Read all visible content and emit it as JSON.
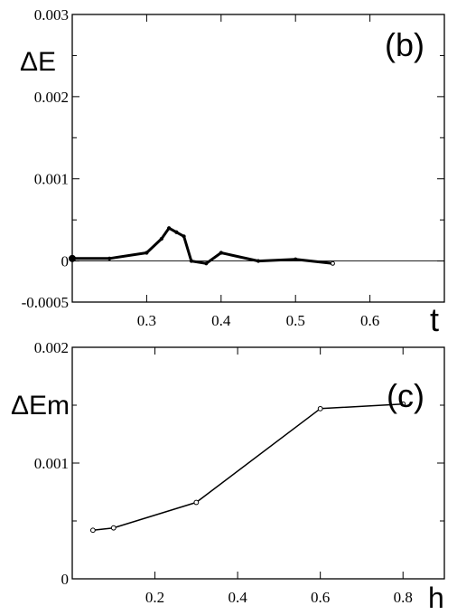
{
  "chart_data": [
    {
      "type": "line",
      "panel_label": "(b)",
      "xlabel": "t",
      "ylabel": "ΔE",
      "xlim": [
        0.2,
        0.7
      ],
      "ylim": [
        -0.0005,
        0.003
      ],
      "xticks": [
        0.3,
        0.4,
        0.5,
        0.6
      ],
      "xtick_labels": [
        "0.3",
        "0.4",
        "0.5",
        "0.6"
      ],
      "yticks": [
        -0.0005,
        0,
        0.001,
        0.002,
        0.003
      ],
      "ytick_labels": [
        "-0.0005",
        "0",
        "0.001",
        "0.002",
        "0.003"
      ],
      "minor_yticks": [
        0.0005,
        0.0015,
        0.0025
      ],
      "zero_line": true,
      "grid": false,
      "series": [
        {
          "x": [
            0.2,
            0.25,
            0.3,
            0.32,
            0.33,
            0.34,
            0.35,
            0.36,
            0.38,
            0.4,
            0.45,
            0.5,
            0.55
          ],
          "y": [
            3e-05,
            3e-05,
            0.0001,
            0.00027,
            0.0004,
            0.00035,
            0.0003,
            0.0,
            -3e-05,
            0.0001,
            0.0,
            2e-05,
            -3e-05
          ]
        }
      ]
    },
    {
      "type": "line",
      "panel_label": "(c)",
      "xlabel": "h",
      "ylabel": "ΔEm",
      "xlim": [
        0.0,
        0.9
      ],
      "ylim": [
        0.0,
        0.002
      ],
      "xticks": [
        0.2,
        0.4,
        0.6,
        0.8
      ],
      "xtick_labels": [
        "0.2",
        "0.4",
        "0.6",
        "0.8"
      ],
      "yticks": [
        0,
        0.001,
        0.002
      ],
      "ytick_labels": [
        "0",
        "0.001",
        "0.002"
      ],
      "minor_yticks": [
        0.0005,
        0.0015
      ],
      "grid": false,
      "series": [
        {
          "x": [
            0.05,
            0.1,
            0.3,
            0.6,
            0.8
          ],
          "y": [
            0.00042,
            0.00044,
            0.00066,
            0.00147,
            0.00151
          ]
        }
      ]
    }
  ]
}
